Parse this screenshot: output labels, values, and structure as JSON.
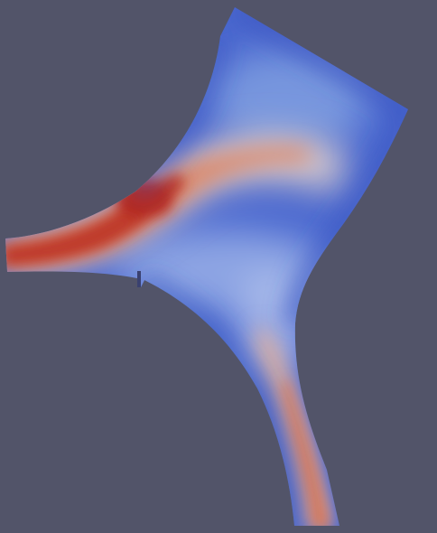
{
  "viewport": {
    "background_color": "#525469",
    "scene": "scalar-field-colormap-on-mesh",
    "colormap": {
      "name": "cool-to-warm",
      "low_color": "#3b4cc0",
      "mid_color": "#dddddd",
      "high_color": "#b40426"
    }
  }
}
